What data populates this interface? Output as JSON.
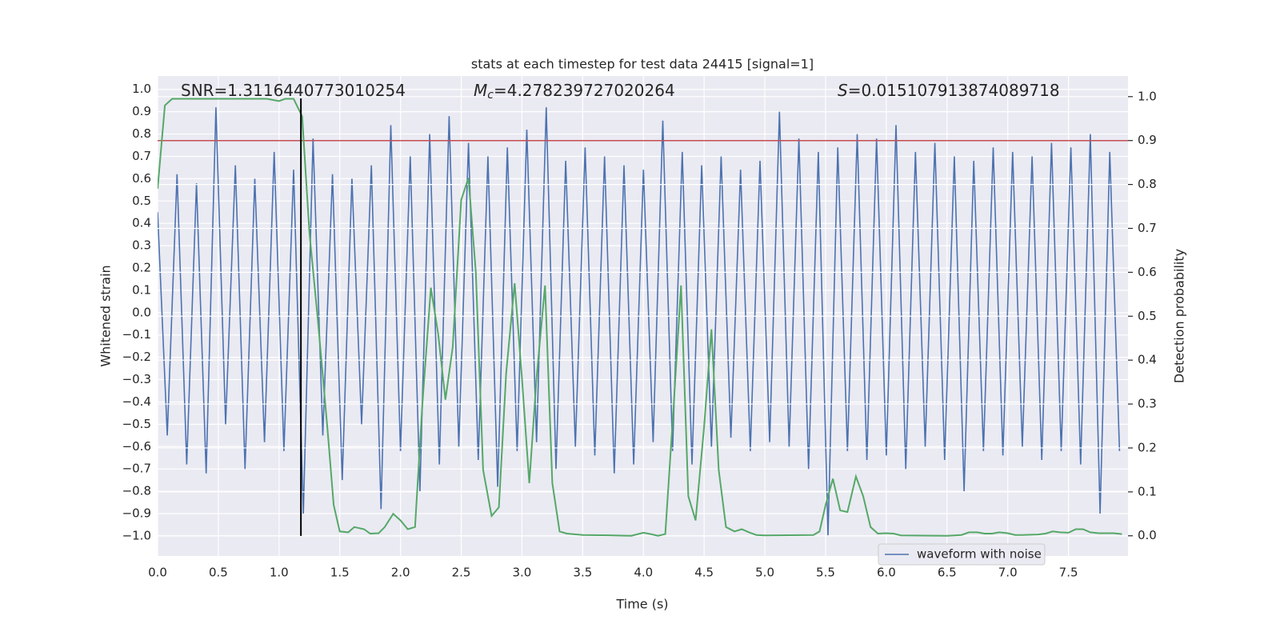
{
  "chart_data": {
    "type": "line",
    "title": "stats at each timestep for test data 24415 [signal=1]",
    "xlabel": "Time (s)",
    "ylabel": "Whitened strain",
    "y2label": "Detection probability",
    "annotations": [
      [
        {
          "text": "SNR=1.3116440773010254"
        }
      ],
      [
        {
          "text": "M",
          "style": "italic"
        },
        {
          "text": "c",
          "style": "sub"
        },
        {
          "text": "=4.278239727020264"
        }
      ],
      [
        {
          "text": "S",
          "style": "italic"
        },
        {
          "text": "=0.015107913874089718"
        }
      ]
    ],
    "xlim": [
      0,
      7.99
    ],
    "ylim": [
      -1.09,
      1.06
    ],
    "y2lim": [
      -0.046,
      1.047
    ],
    "grid": true,
    "legend": "lower right",
    "xticks": [
      {
        "value": 0,
        "label": "0.0"
      },
      0.5,
      {
        "value": 1,
        "label": "1.0"
      },
      1.5,
      {
        "value": 2,
        "label": "2.0"
      },
      2.5,
      {
        "value": 3,
        "label": "3.0"
      },
      3.5,
      {
        "value": 4,
        "label": "4.0"
      },
      4.5,
      {
        "value": 5,
        "label": "5.0"
      },
      5.5,
      {
        "value": 6,
        "label": "6.0"
      },
      6.5,
      {
        "value": 7,
        "label": "7.0"
      },
      7.5
    ],
    "yticks": [
      {
        "value": -1,
        "label": "−1.0"
      },
      {
        "value": -0.9,
        "label": "−0.9"
      },
      {
        "value": -0.8,
        "label": "−0.8"
      },
      {
        "value": -0.7,
        "label": "−0.7"
      },
      {
        "value": -0.6,
        "label": "−0.6"
      },
      {
        "value": -0.5,
        "label": "−0.5"
      },
      {
        "value": -0.4,
        "label": "−0.4"
      },
      {
        "value": -0.3,
        "label": "−0.3"
      },
      {
        "value": -0.2,
        "label": "−0.2"
      },
      {
        "value": -0.1,
        "label": "−0.1"
      },
      {
        "value": 0,
        "label": "0.0"
      },
      0.1,
      0.2,
      0.3,
      0.4,
      0.5,
      0.6,
      0.7,
      0.8,
      0.9,
      {
        "value": 1,
        "label": "1.0"
      }
    ],
    "y2ticks": [
      {
        "value": 0,
        "label": "0.0"
      },
      0.1,
      0.2,
      0.3,
      0.4,
      0.5,
      0.6,
      0.7,
      0.8,
      0.9,
      {
        "value": 1,
        "label": "1.0"
      }
    ],
    "hlines": [
      {
        "value": 0.9,
        "axis": "y2",
        "color": "#c44e52"
      }
    ],
    "vlines": [
      {
        "value": 1.18,
        "color": "#000000"
      }
    ],
    "series": [
      {
        "name": "waveform with noise",
        "color": "#4c72b0",
        "x": [
          0,
          0.08,
          0.16,
          0.24,
          0.32,
          0.4,
          0.48,
          0.56,
          0.64,
          0.72,
          0.8,
          0.88,
          0.96,
          1.04,
          1.12,
          1.2,
          1.28,
          1.36,
          1.44,
          1.52,
          1.6,
          1.68,
          1.76,
          1.84,
          1.92,
          2,
          2.08,
          2.16,
          2.24,
          2.32,
          2.4,
          2.48,
          2.56,
          2.64,
          2.72,
          2.8,
          2.88,
          2.96,
          3.04,
          3.12,
          3.2,
          3.28,
          3.36,
          3.44,
          3.52,
          3.6,
          3.68,
          3.76,
          3.84,
          3.92,
          4,
          4.08,
          4.16,
          4.24,
          4.32,
          4.4,
          4.48,
          4.56,
          4.64,
          4.72,
          4.8,
          4.88,
          4.96,
          5.04,
          5.12,
          5.2,
          5.28,
          5.36,
          5.44,
          5.52,
          5.6,
          5.68,
          5.76,
          5.84,
          5.92,
          6,
          6.08,
          6.16,
          6.24,
          6.32,
          6.4,
          6.48,
          6.56,
          6.64,
          6.72,
          6.8,
          6.88,
          6.96,
          7.04,
          7.12,
          7.2,
          7.28,
          7.36,
          7.44,
          7.52,
          7.6,
          7.68,
          7.76,
          7.84,
          7.92
        ],
        "values": [
          0.45,
          -0.55,
          0.62,
          -0.68,
          0.58,
          -0.72,
          0.92,
          -0.5,
          0.66,
          -0.7,
          0.6,
          -0.58,
          0.72,
          -0.62,
          0.64,
          -0.9,
          0.78,
          -0.55,
          0.62,
          -0.75,
          0.6,
          -0.5,
          0.66,
          -0.88,
          0.84,
          -0.62,
          0.7,
          -0.8,
          0.8,
          -0.68,
          0.88,
          -0.6,
          0.76,
          -0.66,
          0.7,
          -0.78,
          0.74,
          -0.62,
          0.82,
          -0.58,
          0.92,
          -0.7,
          0.68,
          -0.6,
          0.74,
          -0.64,
          0.7,
          -0.72,
          0.66,
          -0.68,
          0.64,
          -0.58,
          0.86,
          -0.62,
          0.72,
          -0.68,
          0.66,
          -0.6,
          0.7,
          -0.56,
          0.64,
          -0.62,
          0.68,
          -0.58,
          0.9,
          -0.6,
          0.78,
          -0.7,
          0.72,
          -1,
          0.74,
          -0.62,
          0.8,
          -0.66,
          0.78,
          -0.64,
          0.84,
          -0.7,
          0.72,
          -0.6,
          0.76,
          -0.66,
          0.7,
          -0.8,
          0.68,
          -0.62,
          0.74,
          -0.64,
          0.72,
          -0.6,
          0.7,
          -0.66,
          0.76,
          -0.62,
          0.74,
          -0.68,
          0.8,
          -0.9,
          0.72,
          -0.62
        ]
      },
      {
        "color": "#55a868",
        "axis": "y2",
        "x": [
          0,
          0.06,
          0.12,
          0.5,
          0.9,
          1,
          1.05,
          1.12,
          1.19,
          1.25,
          1.32,
          1.4,
          1.45,
          1.5,
          1.57,
          1.62,
          1.7,
          1.75,
          1.82,
          1.87,
          1.94,
          2,
          2.06,
          2.12,
          2.18,
          2.25,
          2.31,
          2.37,
          2.43,
          2.5,
          2.56,
          2.62,
          2.68,
          2.75,
          2.81,
          2.87,
          2.94,
          3,
          3.06,
          3.12,
          3.19,
          3.25,
          3.31,
          3.37,
          3.5,
          3.75,
          3.9,
          4,
          4.06,
          4.12,
          4.18,
          4.25,
          4.31,
          4.37,
          4.43,
          4.5,
          4.56,
          4.62,
          4.68,
          4.75,
          4.81,
          4.87,
          4.93,
          5,
          5.4,
          5.45,
          5.5,
          5.56,
          5.62,
          5.68,
          5.75,
          5.81,
          5.87,
          5.93,
          6,
          6.06,
          6.12,
          6.5,
          6.56,
          6.62,
          6.68,
          6.75,
          6.81,
          6.87,
          6.93,
          7,
          7.06,
          7.12,
          7.25,
          7.31,
          7.37,
          7.43,
          7.5,
          7.56,
          7.62,
          7.68,
          7.75,
          7.87,
          7.94
        ],
        "values": [
          0.79,
          0.98,
          0.995,
          0.995,
          0.995,
          0.99,
          0.995,
          0.995,
          0.955,
          0.69,
          0.49,
          0.24,
          0.07,
          0.01,
          0.008,
          0.02,
          0.015,
          0.005,
          0.006,
          0.02,
          0.05,
          0.035,
          0.015,
          0.02,
          0.3,
          0.565,
          0.46,
          0.31,
          0.43,
          0.765,
          0.815,
          0.6,
          0.15,
          0.045,
          0.065,
          0.37,
          0.575,
          0.36,
          0.12,
          0.36,
          0.57,
          0.12,
          0.01,
          0.005,
          0.002,
          0.001,
          0,
          0.007,
          0.004,
          0,
          0.004,
          0.3,
          0.57,
          0.09,
          0.035,
          0.25,
          0.47,
          0.15,
          0.02,
          0.01,
          0.015,
          0.008,
          0.002,
          0.001,
          0.002,
          0.01,
          0.07,
          0.13,
          0.058,
          0.054,
          0.135,
          0.09,
          0.02,
          0.005,
          0.006,
          0.005,
          0.001,
          0,
          0.001,
          0.002,
          0.008,
          0.008,
          0.005,
          0.005,
          0.008,
          0.006,
          0.002,
          0.002,
          0.003,
          0.005,
          0.01,
          0.008,
          0.007,
          0.015,
          0.015,
          0.008,
          0.006,
          0.006,
          0.004
        ]
      }
    ]
  }
}
